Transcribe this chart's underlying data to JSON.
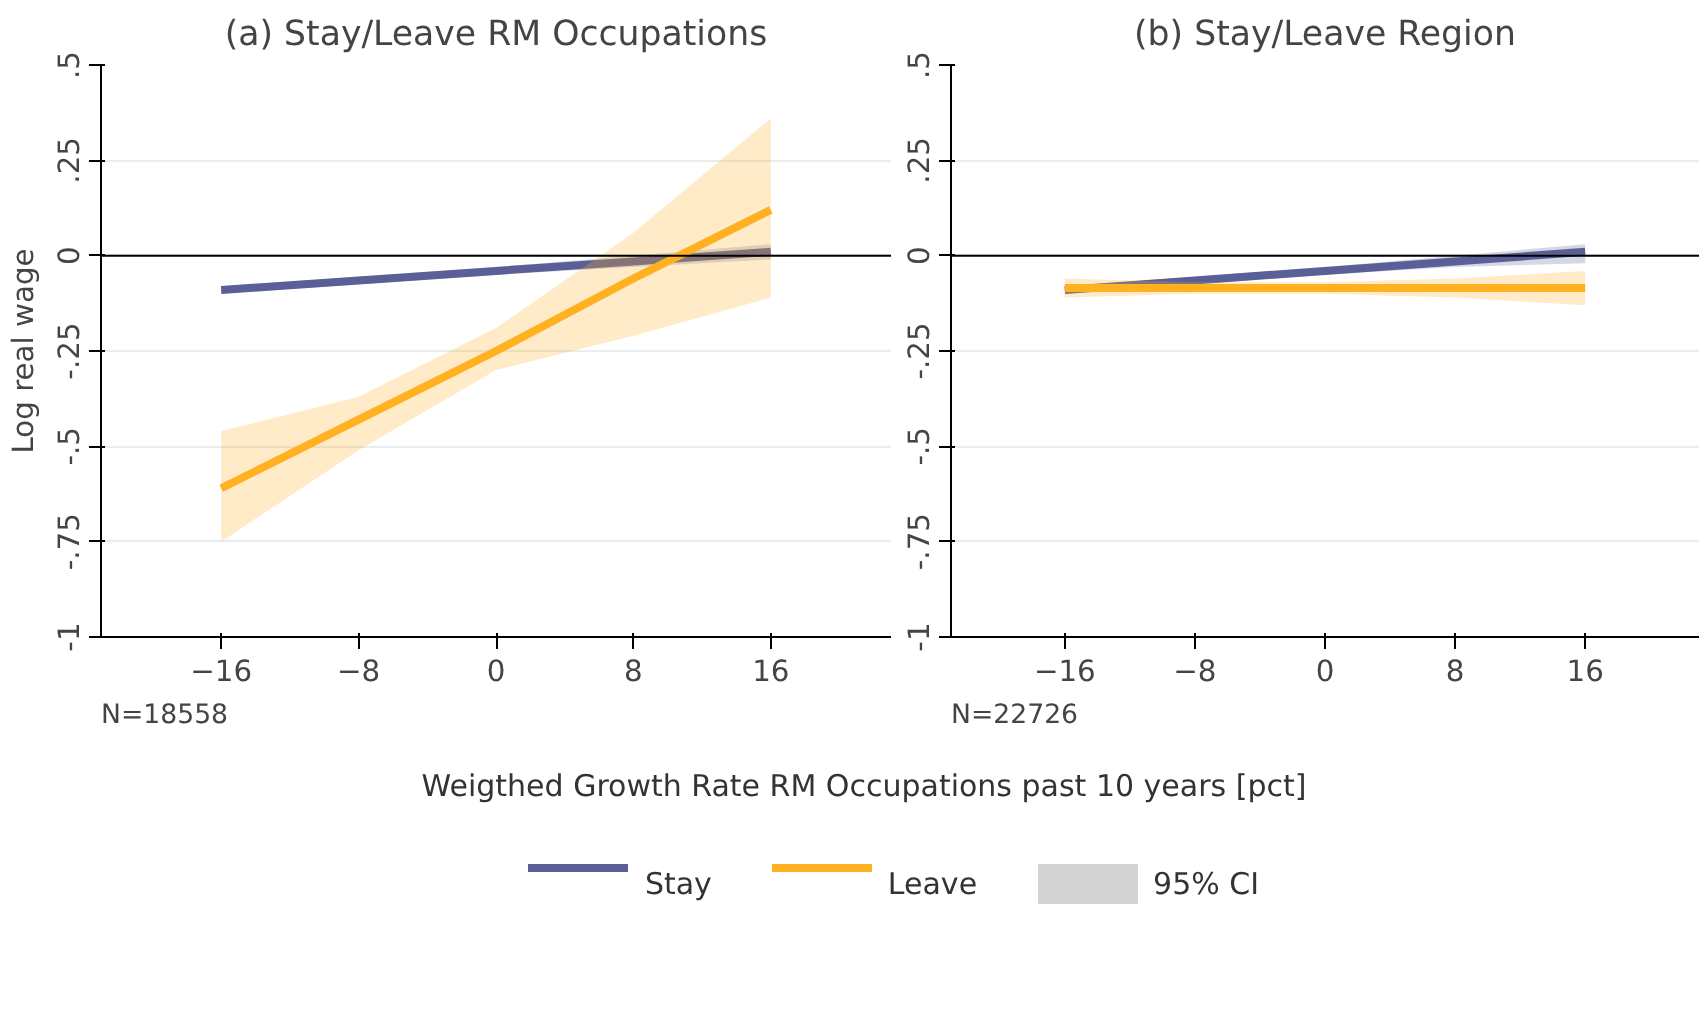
{
  "chart_data": [
    {
      "type": "line",
      "title": "(a) Stay/Leave RM Occupations",
      "ylabel": "Log real wage",
      "xlabel": "Weigthed Growth Rate RM Occupations past 10 years [pct]",
      "x": [
        -16,
        -8,
        0,
        8,
        16
      ],
      "series": [
        {
          "name": "Stay",
          "color": "#5b5f97",
          "values": [
            -0.09,
            -0.065,
            -0.04,
            -0.015,
            0.01
          ],
          "lower": [
            -0.1,
            -0.075,
            -0.05,
            -0.03,
            -0.01
          ],
          "upper": [
            -0.08,
            -0.055,
            -0.03,
            0.0,
            0.03
          ]
        },
        {
          "name": "Leave",
          "color": "#ffb121",
          "values": [
            -0.61,
            -0.43,
            -0.25,
            -0.06,
            0.12
          ],
          "lower": [
            -0.75,
            -0.51,
            -0.3,
            -0.21,
            -0.11
          ],
          "upper": [
            -0.46,
            -0.37,
            -0.19,
            0.06,
            0.36
          ]
        }
      ],
      "annotations": [
        "N=18558",
        "95% CI"
      ],
      "xlim": [
        -23,
        23
      ],
      "xticks": [
        -16,
        -8,
        0,
        8,
        16
      ],
      "ylim": [
        -1,
        0.5
      ],
      "yticks": [
        {
          "value": -1,
          "label": "-1"
        },
        {
          "value": -0.75,
          "label": "-.75"
        },
        {
          "value": -0.5,
          "label": "-.5"
        },
        {
          "value": -0.25,
          "label": "-.25"
        },
        0,
        {
          "value": 0.25,
          "label": ".25"
        },
        {
          "value": 0.5,
          "label": ".5"
        }
      ],
      "ref_lines": [
        {
          "axis": "y",
          "value": 0,
          "color": "#000000"
        }
      ],
      "grid": "y",
      "legend": "bottom"
    },
    {
      "type": "line",
      "title": "(b) Stay/Leave Region",
      "x": [
        -16,
        -8,
        0,
        8,
        16
      ],
      "series": [
        {
          "name": "Stay",
          "color": "#5b5f97",
          "values": [
            -0.09,
            -0.065,
            -0.04,
            -0.015,
            0.01
          ],
          "lower": [
            -0.1,
            -0.075,
            -0.05,
            -0.03,
            -0.02
          ],
          "upper": [
            -0.08,
            -0.055,
            -0.03,
            0.0,
            0.03
          ]
        },
        {
          "name": "Leave",
          "color": "#ffb121",
          "values": [
            -0.085,
            -0.085,
            -0.085,
            -0.085,
            -0.085
          ],
          "lower": [
            -0.11,
            -0.1,
            -0.1,
            -0.11,
            -0.13
          ],
          "upper": [
            -0.06,
            -0.07,
            -0.07,
            -0.06,
            -0.04
          ]
        }
      ],
      "annotations": [
        "N=22726"
      ],
      "xlim": [
        -23,
        23
      ],
      "xticks": [
        -16,
        -8,
        0,
        8,
        16
      ],
      "ylim": [
        -1,
        0.5
      ],
      "yticks": [
        {
          "value": -1,
          "label": "-1"
        },
        {
          "value": -0.75,
          "label": "-.75"
        },
        {
          "value": -0.5,
          "label": "-.5"
        },
        {
          "value": -0.25,
          "label": "-.25"
        },
        0,
        {
          "value": 0.25,
          "label": ".25"
        },
        {
          "value": 0.5,
          "label": ".5"
        }
      ],
      "ref_lines": [
        {
          "axis": "y",
          "value": 0,
          "color": "#000000"
        }
      ],
      "grid": "y"
    }
  ]
}
